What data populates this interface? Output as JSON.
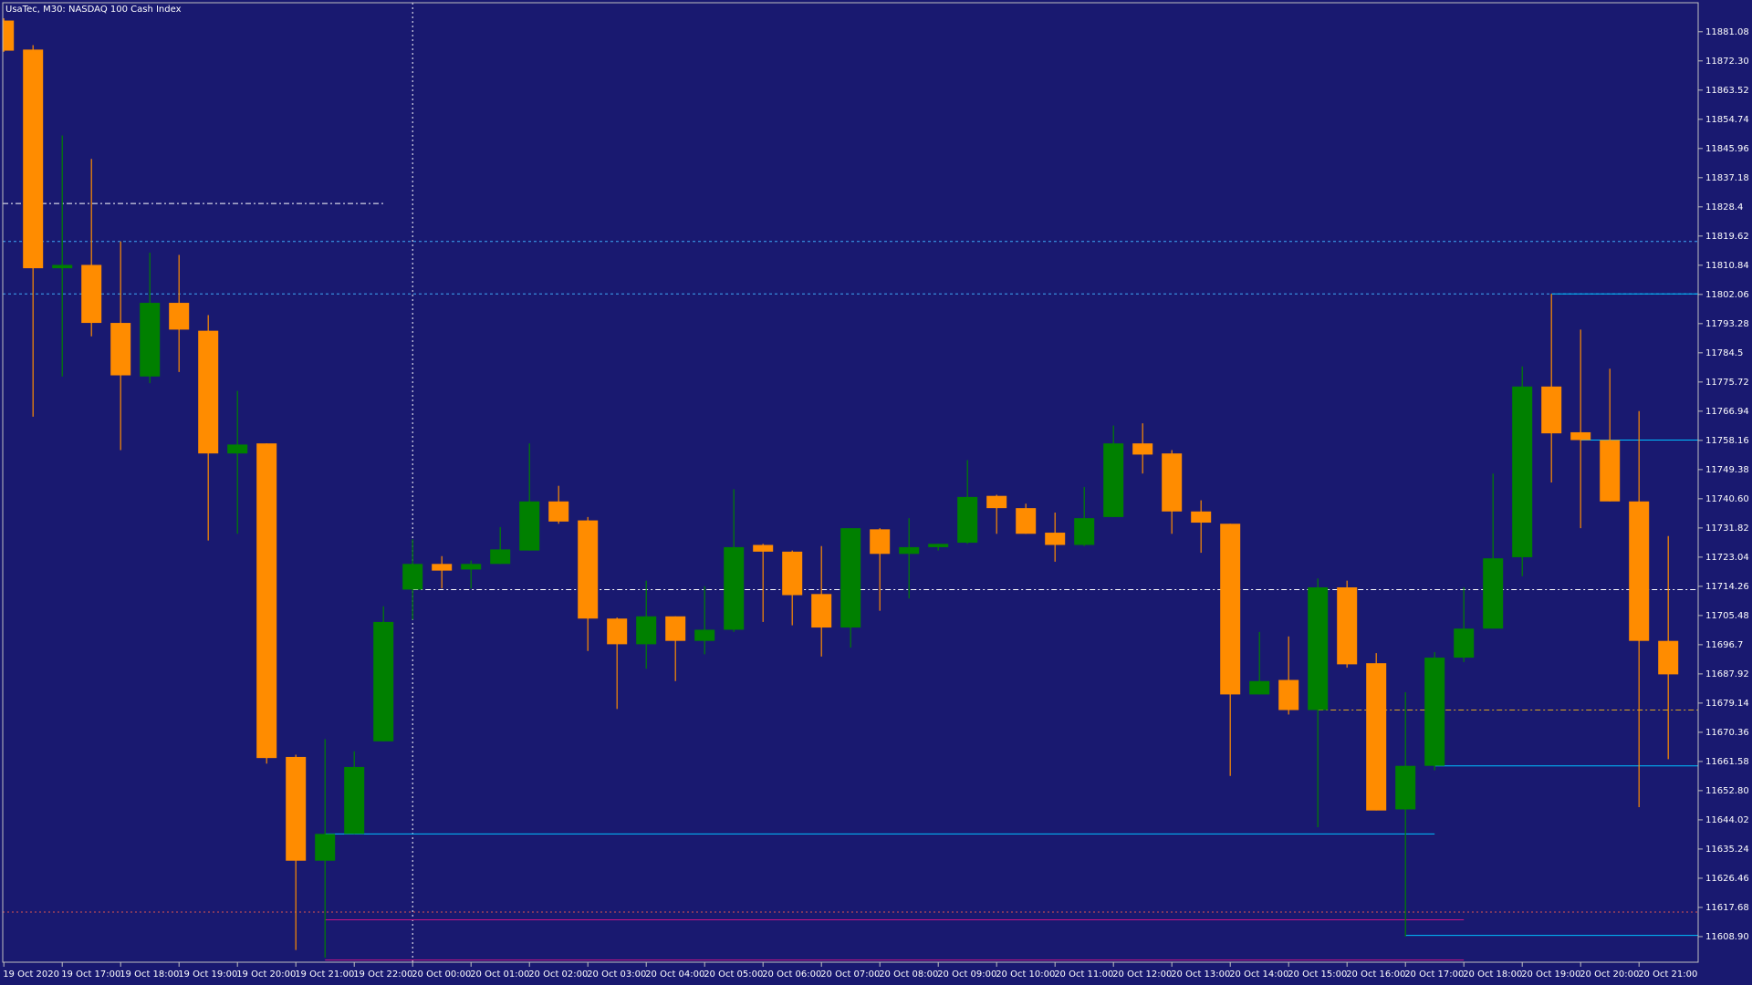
{
  "chart_data": {
    "type": "candlestick",
    "title": "UsaTec, M30:  NASDAQ 100 Cash Index",
    "categories": [
      "19 Oct 2020",
      null,
      "19 Oct 17:00",
      null,
      "19 Oct 18:00",
      null,
      "19 Oct 19:00",
      null,
      "19 Oct 20:00",
      null,
      "19 Oct 21:00",
      null,
      "19 Oct 22:00",
      null,
      "20 Oct 00:00",
      null,
      "20 Oct 01:00",
      null,
      "20 Oct 02:00",
      null,
      "20 Oct 03:00",
      null,
      "20 Oct 04:00",
      null,
      "20 Oct 05:00",
      null,
      "20 Oct 06:00",
      null,
      "20 Oct 07:00",
      null,
      "20 Oct 08:00",
      null,
      "20 Oct 09:00",
      null,
      "20 Oct 10:00",
      null,
      "20 Oct 11:00",
      null,
      "20 Oct 12:00",
      null,
      "20 Oct 13:00",
      null,
      "20 Oct 14:00",
      null,
      "20 Oct 15:00",
      null,
      "20 Oct 16:00",
      null,
      "20 Oct 17:00",
      null,
      "20 Oct 18:00",
      null,
      "20 Oct 19:00",
      null,
      "20 Oct 20:00",
      null,
      "20 Oct 21:00",
      null
    ],
    "open": [
      11884.44,
      11875.71,
      11809.94,
      11810.94,
      11793.49,
      11777.38,
      11799.53,
      11791.14,
      11754.23,
      11757.25,
      11662.94,
      11631.73,
      11639.79,
      11667.64,
      11713.28,
      11721.0,
      11719.32,
      11721.0,
      11725.03,
      11739.8,
      11734.09,
      11704.56,
      11696.84,
      11705.23,
      11697.85,
      11701.2,
      11726.71,
      11724.69,
      11711.94,
      11701.87,
      11731.41,
      11724.02,
      11726.04,
      11727.38,
      11741.47,
      11737.78,
      11730.4,
      11726.71,
      11735.1,
      11757.25,
      11754.23,
      11736.78,
      11733.08,
      11681.74,
      11686.1,
      11677.04,
      11713.95,
      11691.13,
      11647.17,
      11660.26,
      11692.81,
      11701.54,
      11723.02,
      11774.36,
      11760.6,
      11758.25,
      11739.8,
      11697.85
    ],
    "high": [
      11885.11,
      11877.06,
      11849.87,
      11842.82,
      11817.99,
      11814.63,
      11813.96,
      11795.84,
      11773.02,
      11757.25,
      11663.61,
      11668.31,
      11664.62,
      11708.25,
      11728.39,
      11723.35,
      11722.01,
      11732.08,
      11757.25,
      11744.49,
      11735.1,
      11704.89,
      11715.97,
      11705.23,
      11714.29,
      11743.49,
      11727.04,
      11725.03,
      11726.37,
      11731.74,
      11731.74,
      11734.76,
      11727.04,
      11752.21,
      11741.81,
      11739.12,
      11736.44,
      11744.16,
      11762.62,
      11763.29,
      11755.23,
      11740.13,
      11733.08,
      11700.53,
      11699.19,
      11716.64,
      11715.97,
      11694.15,
      11682.41,
      11694.49,
      11713.95,
      11748.19,
      11780.4,
      11802.22,
      11791.48,
      11779.73,
      11766.98,
      11729.39
    ],
    "low": [
      11875.04,
      11765.3,
      11777.38,
      11789.46,
      11755.23,
      11775.37,
      11778.73,
      11728.05,
      11730.06,
      11660.93,
      11604.88,
      11602.54,
      11639.79,
      11667.64,
      11704.22,
      11713.62,
      11713.62,
      11721.0,
      11725.03,
      11733.08,
      11694.83,
      11677.37,
      11689.46,
      11685.76,
      11693.82,
      11700.53,
      11703.55,
      11702.54,
      11693.15,
      11695.83,
      11706.91,
      11710.6,
      11725.03,
      11727.04,
      11730.06,
      11730.06,
      11721.67,
      11726.37,
      11735.1,
      11748.19,
      11730.06,
      11724.36,
      11657.24,
      11681.74,
      11675.7,
      11641.8,
      11689.79,
      11646.83,
      11608.91,
      11658.92,
      11691.47,
      11701.54,
      11717.31,
      11745.5,
      11731.74,
      11739.8,
      11647.84,
      11662.27
    ],
    "close": [
      11875.38,
      11809.94,
      11810.94,
      11793.49,
      11777.72,
      11799.53,
      11791.48,
      11754.23,
      11756.91,
      11662.61,
      11631.73,
      11639.79,
      11659.92,
      11703.55,
      11721.0,
      11718.99,
      11721.0,
      11725.36,
      11739.8,
      11733.75,
      11704.56,
      11696.84,
      11705.23,
      11697.85,
      11701.2,
      11726.04,
      11724.69,
      11711.61,
      11701.87,
      11731.74,
      11724.02,
      11726.04,
      11727.04,
      11741.14,
      11737.78,
      11730.06,
      11726.71,
      11734.76,
      11757.25,
      11753.89,
      11736.78,
      11733.42,
      11681.74,
      11685.76,
      11677.04,
      11713.95,
      11690.8,
      11646.83,
      11660.26,
      11692.81,
      11701.54,
      11722.68,
      11774.36,
      11760.27,
      11758.25,
      11739.8,
      11697.85,
      11687.78
    ],
    "up_color": "#008000",
    "down_color": "#ff8c00",
    "background": "#191970",
    "ylim": [
      11601.2,
      11889.8
    ],
    "yticks": [
      11881.08,
      {
        "value": 11872.3,
        "label": "11872.30"
      },
      11863.52,
      11854.74,
      11845.96,
      11837.18,
      11828.4,
      11819.62,
      11810.84,
      11802.06,
      11793.28,
      11784.5,
      11775.72,
      11766.94,
      11758.16,
      11749.38,
      {
        "value": 11740.6,
        "label": "11740.60"
      },
      11731.82,
      11723.04,
      11714.26,
      11705.48,
      11696.7,
      11687.92,
      11679.14,
      11670.36,
      11661.58,
      {
        "value": 11652.8,
        "label": "11652.80"
      },
      11644.02,
      11635.24,
      11626.46,
      11617.68,
      {
        "value": 11608.9,
        "label": "11608.90"
      }
    ],
    "levels": [
      {
        "price": 11817.99,
        "from": 0,
        "to": 57,
        "color": "#3fa9f5",
        "dash": "3 3"
      },
      {
        "price": 11802.22,
        "from": 0,
        "to": 57,
        "color": "#3fa9f5",
        "dash": "3 3"
      },
      {
        "price": 11829.4,
        "from": 0,
        "to": 13,
        "color": "#ffffff",
        "dash": "6 3 2 3"
      },
      {
        "price": 11713.28,
        "from": 14,
        "to": 57,
        "color": "#ffffff",
        "dash": "6 3 2 3"
      },
      {
        "price": 11616.29,
        "from": 0,
        "to": 57,
        "color": "#d9534f",
        "dash": "2 3"
      },
      {
        "price": 11639.79,
        "from": 11,
        "to": 49,
        "color": "#00bfff",
        "dash": "none"
      },
      {
        "price": 11802.22,
        "from": 53,
        "to": 57,
        "color": "#00bfff",
        "dash": "none"
      },
      {
        "price": 11758.25,
        "from": 54,
        "to": 57,
        "color": "#00bfff",
        "dash": "none"
      },
      {
        "price": 11660.26,
        "from": 49,
        "to": 57,
        "color": "#00bfff",
        "dash": "none"
      },
      {
        "price": 11609.25,
        "from": 48,
        "to": 57,
        "color": "#00bfff",
        "dash": "none"
      },
      {
        "price": 11613.95,
        "from": 11,
        "to": 50,
        "color": "#c71585",
        "dash": "none"
      },
      {
        "price": 11601.86,
        "from": 11,
        "to": 50,
        "color": "#c71585",
        "dash": "none"
      },
      {
        "price": 11677.04,
        "from": 45,
        "to": 57,
        "color": "#daa520",
        "dash": "6 3 2 3"
      }
    ],
    "separators": [
      14
    ]
  }
}
